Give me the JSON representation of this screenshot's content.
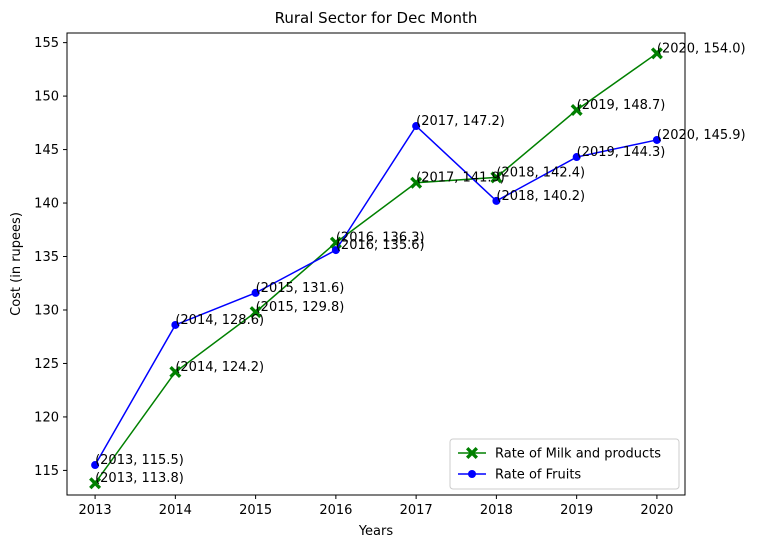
{
  "chart_data": {
    "type": "line",
    "title": "Rural Sector for Dec Month",
    "xlabel": "Years",
    "ylabel": "Cost (in rupees)",
    "x": [
      2013,
      2014,
      2015,
      2016,
      2017,
      2018,
      2019,
      2020
    ],
    "xlim": [
      2012.65,
      2020.35
    ],
    "ylim": [
      112.7,
      155.9
    ],
    "yticks": [
      115,
      120,
      125,
      130,
      135,
      140,
      145,
      150,
      155
    ],
    "grid": false,
    "legend_position": "lower-right",
    "series": [
      {
        "name": "Rate of Milk and products",
        "color": "#008000",
        "marker": "x-filled",
        "values": [
          113.8,
          124.2,
          129.8,
          136.3,
          141.9,
          142.4,
          148.7,
          154.0
        ],
        "annotations": [
          "(2013, 113.8)",
          "(2014, 124.2)",
          "(2015, 129.8)",
          "(2016, 136.3)",
          "(2017, 141.9)",
          "(2018, 142.4)",
          "(2019, 148.7)",
          "(2020, 154.0)"
        ]
      },
      {
        "name": "Rate of Fruits",
        "color": "#0000ff",
        "marker": "circle",
        "values": [
          115.5,
          128.6,
          131.6,
          135.6,
          147.2,
          140.2,
          144.3,
          145.9
        ],
        "annotations": [
          "(2013, 115.5)",
          "(2014, 128.6)",
          "(2015, 131.6)",
          "(2016, 135.6)",
          "(2017, 147.2)",
          "(2018, 140.2)",
          "(2019, 144.3)",
          "(2020, 145.9)"
        ]
      }
    ]
  }
}
